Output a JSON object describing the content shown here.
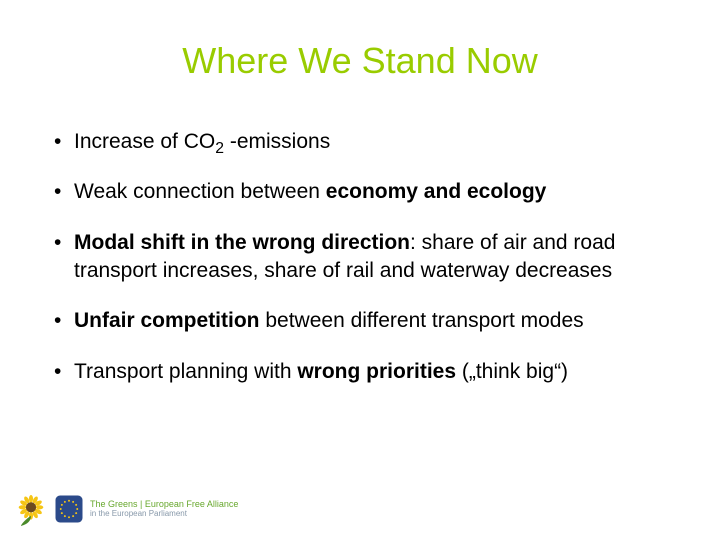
{
  "colors": {
    "title": "#99cc00",
    "text": "#000000",
    "footer_brand": "#68a82e",
    "footer_sub": "#8899aa",
    "sunflower_petal": "#f5c515",
    "sunflower_center": "#6b4a1f",
    "sunflower_leaf": "#4a8a2a",
    "eu_bg": "#2b4a8a",
    "eu_ring": "#f5c515"
  },
  "title": "Where We Stand Now",
  "bullets": [
    {
      "segments": [
        {
          "text": "Increase of CO",
          "bold": false
        },
        {
          "text": "2",
          "bold": false,
          "sub": true
        },
        {
          "text": " -emissions",
          "bold": false
        }
      ]
    },
    {
      "segments": [
        {
          "text": "Weak connection between ",
          "bold": false
        },
        {
          "text": "economy and ecology",
          "bold": true
        }
      ]
    },
    {
      "segments": [
        {
          "text": "Modal shift in the wrong direction",
          "bold": true
        },
        {
          "text": ": share of air and road transport increases, share of rail and waterway decreases",
          "bold": false
        }
      ]
    },
    {
      "segments": [
        {
          "text": "Unfair competition",
          "bold": true
        },
        {
          "text": " between different transport modes",
          "bold": false
        }
      ]
    },
    {
      "segments": [
        {
          "text": "Transport planning with ",
          "bold": false
        },
        {
          "text": "wrong priorities",
          "bold": true
        },
        {
          "text": " („think big“)",
          "bold": false
        }
      ]
    }
  ],
  "footer": {
    "line1": "The Greens | European Free Alliance",
    "line2": "in the European Parliament"
  }
}
